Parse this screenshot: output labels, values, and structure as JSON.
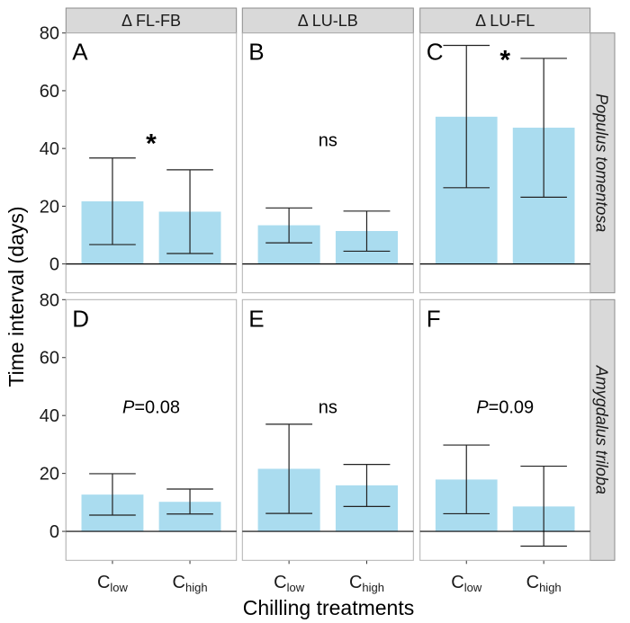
{
  "chart_data": {
    "type": "bar",
    "layout": "faceted grid, 2 rows x 3 columns",
    "ylabel": "Time interval (days)",
    "xlabel": "Chilling treatments",
    "ylim": [
      -10,
      80
    ],
    "yticks": [
      0,
      20,
      40,
      60,
      80
    ],
    "grid": false,
    "bar_color": "#aadcef",
    "categories": [
      {
        "base": "C",
        "sub": "low"
      },
      {
        "base": "C",
        "sub": "high"
      }
    ],
    "column_strips": [
      "Δ FL-FB",
      "Δ LU-LB",
      "Δ LU-FL"
    ],
    "row_strips": [
      "Populus tomentosa",
      "Amygdalus triloba"
    ],
    "panels": [
      {
        "letter": "A",
        "row": 0,
        "col": 0,
        "annotation": {
          "italic": "",
          "text": "*",
          "x": 1.5,
          "y": 43
        },
        "bars": [
          {
            "value": 21.7,
            "lower": 6.7,
            "upper": 36.7
          },
          {
            "value": 18.1,
            "lower": 3.6,
            "upper": 32.6
          }
        ]
      },
      {
        "letter": "B",
        "row": 0,
        "col": 1,
        "annotation": {
          "italic": "",
          "text": "ns",
          "x": 1.5,
          "y": 43
        },
        "bars": [
          {
            "value": 13.4,
            "lower": 7.3,
            "upper": 19.4
          },
          {
            "value": 11.4,
            "lower": 4.4,
            "upper": 18.3
          }
        ]
      },
      {
        "letter": "C",
        "row": 0,
        "col": 2,
        "annotation": {
          "italic": "",
          "text": "*",
          "x": 1.5,
          "y": 72
        },
        "bars": [
          {
            "value": 51.0,
            "lower": 26.4,
            "upper": 75.7
          },
          {
            "value": 47.2,
            "lower": 23.1,
            "upper": 71.2
          }
        ]
      },
      {
        "letter": "D",
        "row": 1,
        "col": 0,
        "annotation": {
          "italic": "P",
          "text": "=0.08",
          "x": 1.5,
          "y": 43
        },
        "bars": [
          {
            "value": 12.7,
            "lower": 5.6,
            "upper": 19.9
          },
          {
            "value": 10.2,
            "lower": 6.0,
            "upper": 14.6
          }
        ]
      },
      {
        "letter": "E",
        "row": 1,
        "col": 1,
        "annotation": {
          "italic": "",
          "text": "ns",
          "x": 1.5,
          "y": 43
        },
        "bars": [
          {
            "value": 21.6,
            "lower": 6.2,
            "upper": 37.0
          },
          {
            "value": 15.9,
            "lower": 8.6,
            "upper": 23.1
          }
        ]
      },
      {
        "letter": "F",
        "row": 1,
        "col": 2,
        "annotation": {
          "italic": "P",
          "text": "=0.09",
          "x": 1.5,
          "y": 43
        },
        "bars": [
          {
            "value": 17.9,
            "lower": 6.1,
            "upper": 29.8
          },
          {
            "value": 8.6,
            "lower": -5.1,
            "upper": 22.5
          }
        ]
      }
    ]
  }
}
